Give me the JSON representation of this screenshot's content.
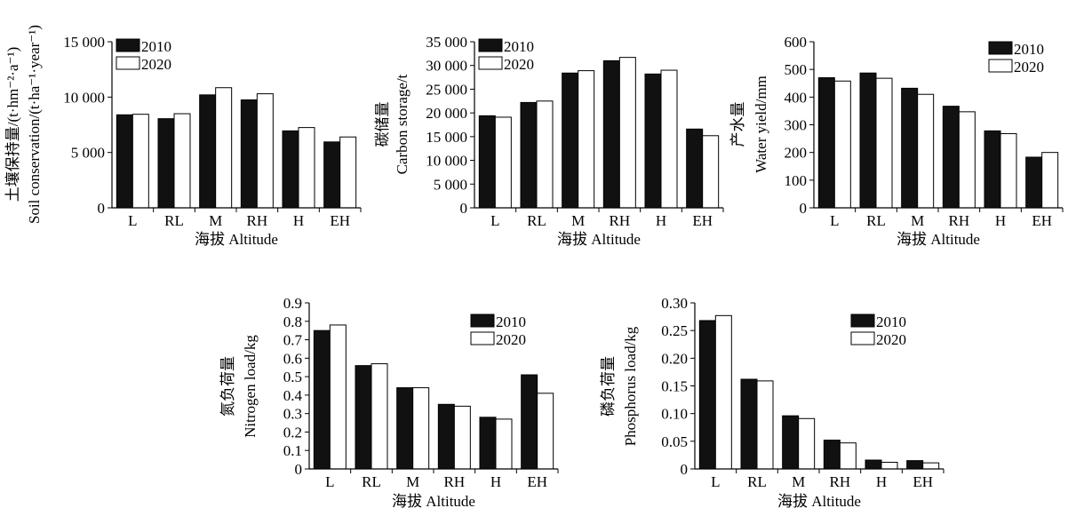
{
  "chart_data": [
    {
      "id": "soil",
      "type": "bar",
      "categories": [
        "L",
        "RL",
        "M",
        "RH",
        "H",
        "EH"
      ],
      "series": [
        {
          "name": "2010",
          "values": [
            8400,
            8050,
            10200,
            9750,
            6950,
            5950
          ]
        },
        {
          "name": "2020",
          "values": [
            8450,
            8500,
            10850,
            10300,
            7250,
            6400
          ]
        }
      ],
      "ylim": [
        0,
        15000
      ],
      "yticks": [
        0,
        5000,
        10000,
        15000
      ],
      "ytick_labels": [
        "0",
        "5 000",
        "10 000",
        "15 000"
      ],
      "ylabel_cn": "土壤保持量/(t·hm⁻²·a⁻¹)",
      "ylabel_en": "Soil conservation/(t·ha⁻¹·year⁻¹)",
      "xlabel": "海拔 Altitude",
      "legend": "top-left",
      "grid": false
    },
    {
      "id": "carbon",
      "type": "bar",
      "categories": [
        "L",
        "RL",
        "M",
        "RH",
        "H",
        "EH"
      ],
      "series": [
        {
          "name": "2010",
          "values": [
            19400,
            22200,
            28400,
            31000,
            28200,
            16600
          ]
        },
        {
          "name": "2020",
          "values": [
            19100,
            22500,
            28900,
            31700,
            29000,
            15200
          ]
        }
      ],
      "ylim": [
        0,
        35000
      ],
      "yticks": [
        0,
        5000,
        10000,
        15000,
        20000,
        25000,
        30000,
        35000
      ],
      "ytick_labels": [
        "0",
        "5 000",
        "10 000",
        "15 000",
        "20 000",
        "25 000",
        "30 000",
        "35 000"
      ],
      "ylabel_cn": "碳储量",
      "ylabel_en": "Carbon storage/t",
      "xlabel": "海拔 Altitude",
      "legend": "top-left",
      "grid": false
    },
    {
      "id": "water",
      "type": "bar",
      "categories": [
        "L",
        "RL",
        "M",
        "RH",
        "H",
        "EH"
      ],
      "series": [
        {
          "name": "2010",
          "values": [
            470,
            487,
            432,
            367,
            278,
            183
          ]
        },
        {
          "name": "2020",
          "values": [
            458,
            468,
            410,
            347,
            268,
            200
          ]
        }
      ],
      "ylim": [
        0,
        600
      ],
      "yticks": [
        0,
        100,
        200,
        300,
        400,
        500,
        600
      ],
      "ytick_labels": [
        "0",
        "100",
        "200",
        "300",
        "400",
        "500",
        "600"
      ],
      "ylabel_cn": "产水量",
      "ylabel_en": "Water yield/mm",
      "xlabel": "海拔 Altitude",
      "legend": "top-right",
      "grid": false
    },
    {
      "id": "nitrogen",
      "type": "bar",
      "categories": [
        "L",
        "RL",
        "M",
        "RH",
        "H",
        "EH"
      ],
      "series": [
        {
          "name": "2010",
          "values": [
            0.75,
            0.56,
            0.44,
            0.35,
            0.28,
            0.51
          ]
        },
        {
          "name": "2020",
          "values": [
            0.78,
            0.57,
            0.44,
            0.34,
            0.27,
            0.41
          ]
        }
      ],
      "ylim": [
        0,
        0.9
      ],
      "yticks": [
        0,
        0.1,
        0.2,
        0.3,
        0.4,
        0.5,
        0.6,
        0.7,
        0.8,
        0.9
      ],
      "ytick_labels": [
        "0",
        "0.1",
        "0.2",
        "0.3",
        "0.4",
        "0.5",
        "0.6",
        "0.7",
        "0.8",
        "0.9"
      ],
      "ylabel_cn": "氮负荷量",
      "ylabel_en": "Nitrogen load/kg",
      "xlabel": "海拔 Altitude",
      "legend": "top-right",
      "grid": false
    },
    {
      "id": "phosphorus",
      "type": "bar",
      "categories": [
        "L",
        "RL",
        "M",
        "RH",
        "H",
        "EH"
      ],
      "series": [
        {
          "name": "2010",
          "values": [
            0.268,
            0.162,
            0.096,
            0.052,
            0.016,
            0.015
          ]
        },
        {
          "name": "2020",
          "values": [
            0.277,
            0.159,
            0.091,
            0.047,
            0.012,
            0.011
          ]
        }
      ],
      "ylim": [
        0,
        0.3
      ],
      "yticks": [
        0,
        0.05,
        0.1,
        0.15,
        0.2,
        0.25,
        0.3
      ],
      "ytick_labels": [
        "0",
        "0.05",
        "0.10",
        "0.15",
        "0.20",
        "0.25",
        "0.30"
      ],
      "ylabel_cn": "磷负荷量",
      "ylabel_en": "Phosphorus load/kg",
      "xlabel": "海拔 Altitude",
      "legend": "top-right",
      "grid": false
    }
  ],
  "colors": {
    "series_2010": "#111111",
    "series_2020": "#ffffff",
    "axis": "#000000"
  }
}
